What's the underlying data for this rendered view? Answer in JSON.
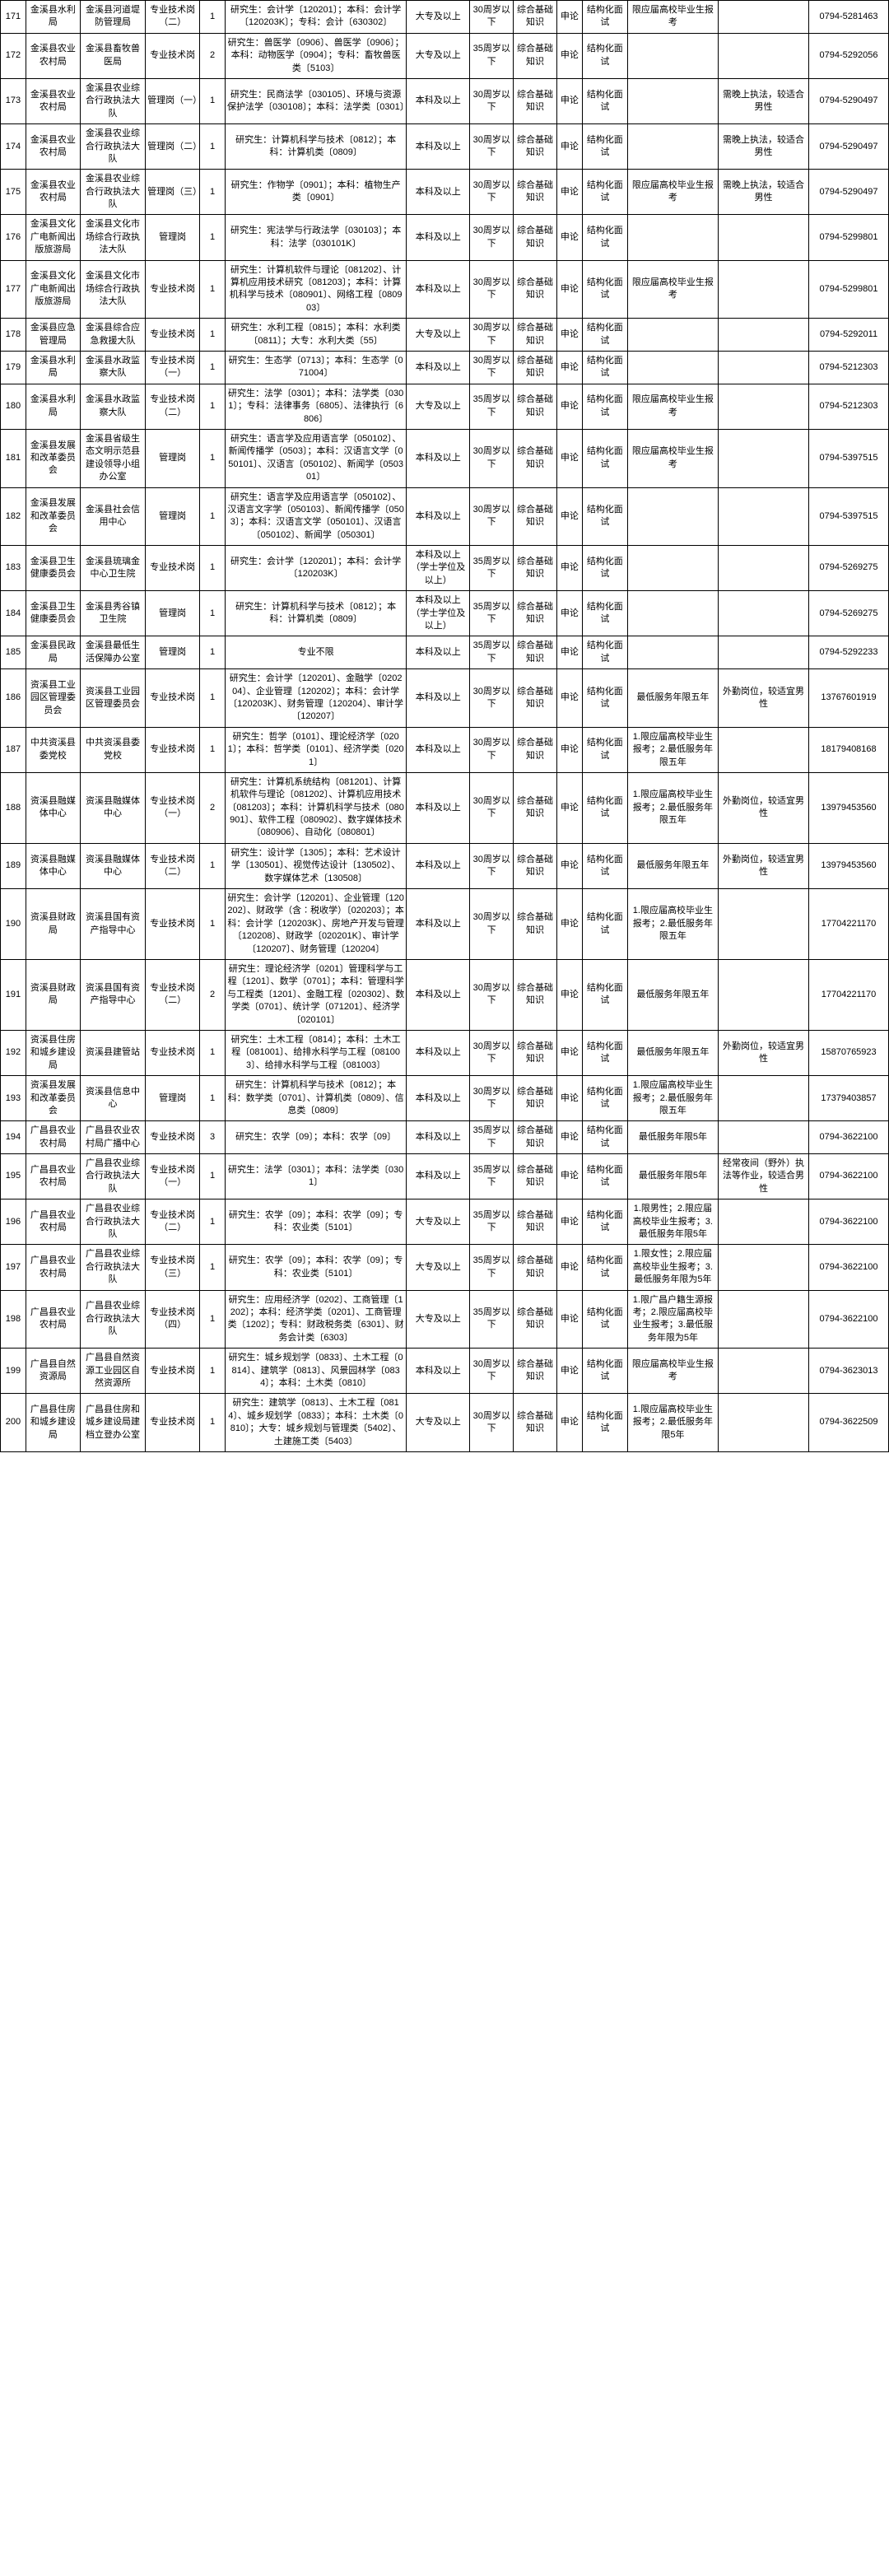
{
  "rows": [
    {
      "idx": "171",
      "dept": "金溪县水利局",
      "unit": "金溪县河道堤防管理局",
      "post": "专业技术岗（二）",
      "num": "1",
      "major": "研究生：会计学〔120201〕；本科：会计学〔120203K〕；专科：会计〔630302〕",
      "edu": "大专及以上",
      "age": "30周岁以下",
      "know": "综合基础知识",
      "sl": "申论",
      "iv": "结构化面试",
      "req": "限应届高校毕业生报考",
      "note": "",
      "tel": "0794-5281463"
    },
    {
      "idx": "172",
      "dept": "金溪县农业农村局",
      "unit": "金溪县畜牧兽医局",
      "post": "专业技术岗",
      "num": "2",
      "major": "研究生：兽医学〔0906〕、兽医学〔0906〕；本科：动物医学〔0904〕；专科：畜牧兽医类〔5103〕",
      "edu": "大专及以上",
      "age": "35周岁以下",
      "know": "综合基础知识",
      "sl": "申论",
      "iv": "结构化面试",
      "req": "",
      "note": "",
      "tel": "0794-5292056"
    },
    {
      "idx": "173",
      "dept": "金溪县农业农村局",
      "unit": "金溪县农业综合行政执法大队",
      "post": "管理岗（一）",
      "num": "1",
      "major": "研究生：民商法学〔030105〕、环境与资源保护法学〔030108〕；本科：法学类〔0301〕",
      "edu": "本科及以上",
      "age": "30周岁以下",
      "know": "综合基础知识",
      "sl": "申论",
      "iv": "结构化面试",
      "req": "",
      "note": "需晚上执法，较适合男性",
      "tel": "0794-5290497"
    },
    {
      "idx": "174",
      "dept": "金溪县农业农村局",
      "unit": "金溪县农业综合行政执法大队",
      "post": "管理岗（二）",
      "num": "1",
      "major": "研究生：计算机科学与技术〔0812〕；本科：计算机类〔0809〕",
      "edu": "本科及以上",
      "age": "30周岁以下",
      "know": "综合基础知识",
      "sl": "申论",
      "iv": "结构化面试",
      "req": "",
      "note": "需晚上执法，较适合男性",
      "tel": "0794-5290497"
    },
    {
      "idx": "175",
      "dept": "金溪县农业农村局",
      "unit": "金溪县农业综合行政执法大队",
      "post": "管理岗（三）",
      "num": "1",
      "major": "研究生：作物学〔0901〕；本科：植物生产类〔0901〕",
      "edu": "本科及以上",
      "age": "30周岁以下",
      "know": "综合基础知识",
      "sl": "申论",
      "iv": "结构化面试",
      "req": "限应届高校毕业生报考",
      "note": "需晚上执法，较适合男性",
      "tel": "0794-5290497"
    },
    {
      "idx": "176",
      "dept": "金溪县文化广电新闻出版旅游局",
      "unit": "金溪县文化市场综合行政执法大队",
      "post": "管理岗",
      "num": "1",
      "major": "研究生：宪法学与行政法学〔030103〕；本科：法学〔030101K〕",
      "edu": "本科及以上",
      "age": "30周岁以下",
      "know": "综合基础知识",
      "sl": "申论",
      "iv": "结构化面试",
      "req": "",
      "note": "",
      "tel": "0794-5299801"
    },
    {
      "idx": "177",
      "dept": "金溪县文化广电新闻出版旅游局",
      "unit": "金溪县文化市场综合行政执法大队",
      "post": "专业技术岗",
      "num": "1",
      "major": "研究生：计算机软件与理论〔081202〕、计算机应用技术研究〔081203〕；本科：计算机科学与技术〔080901〕、网络工程〔080903〕",
      "edu": "本科及以上",
      "age": "30周岁以下",
      "know": "综合基础知识",
      "sl": "申论",
      "iv": "结构化面试",
      "req": "限应届高校毕业生报考",
      "note": "",
      "tel": "0794-5299801"
    },
    {
      "idx": "178",
      "dept": "金溪县应急管理局",
      "unit": "金溪县综合应急救援大队",
      "post": "专业技术岗",
      "num": "1",
      "major": "研究生：水利工程〔0815〕；本科：水利类〔0811〕；大专：水利大类〔55〕",
      "edu": "大专及以上",
      "age": "30周岁以下",
      "know": "综合基础知识",
      "sl": "申论",
      "iv": "结构化面试",
      "req": "",
      "note": "",
      "tel": "0794-5292011"
    },
    {
      "idx": "179",
      "dept": "金溪县水利局",
      "unit": "金溪县水政监察大队",
      "post": "专业技术岗（一）",
      "num": "1",
      "major": "研究生：生态学〔0713〕；本科：生态学〔071004〕",
      "edu": "本科及以上",
      "age": "30周岁以下",
      "know": "综合基础知识",
      "sl": "申论",
      "iv": "结构化面试",
      "req": "",
      "note": "",
      "tel": "0794-5212303"
    },
    {
      "idx": "180",
      "dept": "金溪县水利局",
      "unit": "金溪县水政监察大队",
      "post": "专业技术岗（二）",
      "num": "1",
      "major": "研究生：法学〔0301〕；本科：法学类〔0301〕；专科：法律事务〔6805〕、法律执行〔6806〕",
      "edu": "大专及以上",
      "age": "35周岁以下",
      "know": "综合基础知识",
      "sl": "申论",
      "iv": "结构化面试",
      "req": "限应届高校毕业生报考",
      "note": "",
      "tel": "0794-5212303"
    },
    {
      "idx": "181",
      "dept": "金溪县发展和改革委员会",
      "unit": "金溪县省级生态文明示范县建设领导小组办公室",
      "post": "管理岗",
      "num": "1",
      "major": "研究生：语言学及应用语言学〔050102〕、新闻传播学〔0503〕；本科：汉语言文学〔050101〕、汉语言〔050102〕、新闻学〔050301〕",
      "edu": "本科及以上",
      "age": "30周岁以下",
      "know": "综合基础知识",
      "sl": "申论",
      "iv": "结构化面试",
      "req": "限应届高校毕业生报考",
      "note": "",
      "tel": "0794-5397515"
    },
    {
      "idx": "182",
      "dept": "金溪县发展和改革委员会",
      "unit": "金溪县社会信用中心",
      "post": "管理岗",
      "num": "1",
      "major": "研究生：语言学及应用语言学〔050102〕、汉语言文字学〔050103〕、新闻传播学〔0503〕；本科：汉语言文学〔050101〕、汉语言〔050102〕、新闻学〔050301〕",
      "edu": "本科及以上",
      "age": "30周岁以下",
      "know": "综合基础知识",
      "sl": "申论",
      "iv": "结构化面试",
      "req": "",
      "note": "",
      "tel": "0794-5397515"
    },
    {
      "idx": "183",
      "dept": "金溪县卫生健康委员会",
      "unit": "金溪县琉璃金中心卫生院",
      "post": "专业技术岗",
      "num": "1",
      "major": "研究生：会计学〔120201〕；本科：会计学〔120203K〕",
      "edu": "本科及以上（学士学位及以上）",
      "age": "35周岁以下",
      "know": "综合基础知识",
      "sl": "申论",
      "iv": "结构化面试",
      "req": "",
      "note": "",
      "tel": "0794-5269275"
    },
    {
      "idx": "184",
      "dept": "金溪县卫生健康委员会",
      "unit": "金溪县秀谷镇卫生院",
      "post": "管理岗",
      "num": "1",
      "major": "研究生：计算机科学与技术〔0812〕；本科：计算机类〔0809〕",
      "edu": "本科及以上（学士学位及以上）",
      "age": "35周岁以下",
      "know": "综合基础知识",
      "sl": "申论",
      "iv": "结构化面试",
      "req": "",
      "note": "",
      "tel": "0794-5269275"
    },
    {
      "idx": "185",
      "dept": "金溪县民政局",
      "unit": "金溪县最低生活保障办公室",
      "post": "管理岗",
      "num": "1",
      "major": "专业不限",
      "edu": "本科及以上",
      "age": "35周岁以下",
      "know": "综合基础知识",
      "sl": "申论",
      "iv": "结构化面试",
      "req": "",
      "note": "",
      "tel": "0794-5292233"
    },
    {
      "idx": "186",
      "dept": "资溪县工业园区管理委员会",
      "unit": "资溪县工业园区管理委员会",
      "post": "专业技术岗",
      "num": "1",
      "major": "研究生：会计学〔120201〕、金融学〔020204〕、企业管理〔120202〕；本科：会计学〔120203K〕、财务管理〔120204〕、审计学〔120207〕",
      "edu": "本科及以上",
      "age": "30周岁以下",
      "know": "综合基础知识",
      "sl": "申论",
      "iv": "结构化面试",
      "req": "最低服务年限五年",
      "note": "外勤岗位，较适宜男性",
      "tel": "13767601919"
    },
    {
      "idx": "187",
      "dept": "中共资溪县委党校",
      "unit": "中共资溪县委党校",
      "post": "专业技术岗",
      "num": "1",
      "major": "研究生：哲学〔0101〕、理论经济学〔0201〕；本科：哲学类〔0101〕、经济学类〔0201〕",
      "edu": "本科及以上",
      "age": "30周岁以下",
      "know": "综合基础知识",
      "sl": "申论",
      "iv": "结构化面试",
      "req": "1.限应届高校毕业生报考；2.最低服务年限五年",
      "note": "",
      "tel": "18179408168"
    },
    {
      "idx": "188",
      "dept": "资溪县融媒体中心",
      "unit": "资溪县融媒体中心",
      "post": "专业技术岗（一）",
      "num": "2",
      "major": "研究生：计算机系统结构〔081201〕、计算机软件与理论〔081202〕、计算机应用技术〔081203〕；本科：计算机科学与技术〔080901〕、软件工程〔080902〕、数字媒体技术〔080906〕、自动化〔080801〕",
      "edu": "本科及以上",
      "age": "30周岁以下",
      "know": "综合基础知识",
      "sl": "申论",
      "iv": "结构化面试",
      "req": "1.限应届高校毕业生报考；2.最低服务年限五年",
      "note": "外勤岗位，较适宜男性",
      "tel": "13979453560"
    },
    {
      "idx": "189",
      "dept": "资溪县融媒体中心",
      "unit": "资溪县融媒体中心",
      "post": "专业技术岗（二）",
      "num": "1",
      "major": "研究生：设计学〔1305〕；本科：艺术设计学〔130501〕、视觉传达设计〔130502〕、数字媒体艺术〔130508〕",
      "edu": "本科及以上",
      "age": "30周岁以下",
      "know": "综合基础知识",
      "sl": "申论",
      "iv": "结构化面试",
      "req": "最低服务年限五年",
      "note": "外勤岗位，较适宜男性",
      "tel": "13979453560"
    },
    {
      "idx": "190",
      "dept": "资溪县财政局",
      "unit": "资溪县国有资产指导中心",
      "post": "专业技术岗",
      "num": "1",
      "major": "研究生：会计学〔120201〕、企业管理〔120202〕、财政学（含∶税收学）〔020203〕；本科：会计学〔120203K〕、房地产开发与管理〔120208〕、财政学〔020201K〕、审计学〔120207〕、财务管理〔120204〕",
      "edu": "本科及以上",
      "age": "30周岁以下",
      "know": "综合基础知识",
      "sl": "申论",
      "iv": "结构化面试",
      "req": "1.限应届高校毕业生报考；2.最低服务年限五年",
      "note": "",
      "tel": "17704221170"
    },
    {
      "idx": "191",
      "dept": "资溪县财政局",
      "unit": "资溪县国有资产指导中心",
      "post": "专业技术岗（二）",
      "num": "2",
      "major": "研究生：理论经济学〔0201〕管理科学与工程〔1201〕、数学〔0701〕；本科：管理科学与工程类〔1201〕、金融工程〔020302〕、数学类〔0701〕、统计学〔071201〕、经济学〔020101〕",
      "edu": "本科及以上",
      "age": "30周岁以下",
      "know": "综合基础知识",
      "sl": "申论",
      "iv": "结构化面试",
      "req": "最低服务年限五年",
      "note": "",
      "tel": "17704221170"
    },
    {
      "idx": "192",
      "dept": "资溪县住房和城乡建设局",
      "unit": "资溪县建管站",
      "post": "专业技术岗",
      "num": "1",
      "major": "研究生：土木工程〔0814〕；本科：土木工程〔081001〕、给排水科学与工程〔081003〕、给排水科学与工程〔081003〕",
      "edu": "本科及以上",
      "age": "30周岁以下",
      "know": "综合基础知识",
      "sl": "申论",
      "iv": "结构化面试",
      "req": "最低服务年限五年",
      "note": "外勤岗位，较适宜男性",
      "tel": "15870765923"
    },
    {
      "idx": "193",
      "dept": "资溪县发展和改革委员会",
      "unit": "资溪县信息中心",
      "post": "管理岗",
      "num": "1",
      "major": "研究生：计算机科学与技术〔0812〕；本科：数学类〔0701〕、计算机类〔0809〕、信息类〔0809〕",
      "edu": "本科及以上",
      "age": "30周岁以下",
      "know": "综合基础知识",
      "sl": "申论",
      "iv": "结构化面试",
      "req": "1.限应届高校毕业生报考；2.最低服务年限五年",
      "note": "",
      "tel": "17379403857"
    },
    {
      "idx": "194",
      "dept": "广昌县农业农村局",
      "unit": "广昌县农业农村局广播中心",
      "post": "专业技术岗",
      "num": "3",
      "major": "研究生：农学〔09〕；本科：农学〔09〕",
      "edu": "本科及以上",
      "age": "35周岁以下",
      "know": "综合基础知识",
      "sl": "申论",
      "iv": "结构化面试",
      "req": "最低服务年限5年",
      "note": "",
      "tel": "0794-3622100"
    },
    {
      "idx": "195",
      "dept": "广昌县农业农村局",
      "unit": "广昌县农业综合行政执法大队",
      "post": "专业技术岗（一）",
      "num": "1",
      "major": "研究生：法学〔0301〕；本科：法学类〔0301〕",
      "edu": "本科及以上",
      "age": "35周岁以下",
      "know": "综合基础知识",
      "sl": "申论",
      "iv": "结构化面试",
      "req": "最低服务年限5年",
      "note": "经常夜间（野外）执法等作业，较适合男性",
      "tel": "0794-3622100"
    },
    {
      "idx": "196",
      "dept": "广昌县农业农村局",
      "unit": "广昌县农业综合行政执法大队",
      "post": "专业技术岗（二）",
      "num": "1",
      "major": "研究生：农学〔09〕；本科：农学〔09〕；专科：农业类〔5101〕",
      "edu": "大专及以上",
      "age": "35周岁以下",
      "know": "综合基础知识",
      "sl": "申论",
      "iv": "结构化面试",
      "req": "1.限男性；2.限应届高校毕业生报考；3.最低服务年限5年",
      "note": "",
      "tel": "0794-3622100"
    },
    {
      "idx": "197",
      "dept": "广昌县农业农村局",
      "unit": "广昌县农业综合行政执法大队",
      "post": "专业技术岗（三）",
      "num": "1",
      "major": "研究生：农学〔09〕；本科：农学〔09〕；专科：农业类〔5101〕",
      "edu": "大专及以上",
      "age": "35周岁以下",
      "know": "综合基础知识",
      "sl": "申论",
      "iv": "结构化面试",
      "req": "1.限女性；2.限应届高校毕业生报考；3.最低服务年限为5年",
      "note": "",
      "tel": "0794-3622100"
    },
    {
      "idx": "198",
      "dept": "广昌县农业农村局",
      "unit": "广昌县农业综合行政执法大队",
      "post": "专业技术岗（四）",
      "num": "1",
      "major": "研究生：应用经济学〔0202〕、工商管理〔1202〕；本科：经济学类〔0201〕、工商管理类〔1202〕；专科：财政税务类〔6301〕、财务会计类〔6303〕",
      "edu": "大专及以上",
      "age": "35周岁以下",
      "know": "综合基础知识",
      "sl": "申论",
      "iv": "结构化面试",
      "req": "1.限广昌户籍生源报考；2.限应届高校毕业生报考；3.最低服务年限为5年",
      "note": "",
      "tel": "0794-3622100"
    },
    {
      "idx": "199",
      "dept": "广昌县自然资源局",
      "unit": "广昌县自然资源工业园区自然资源所",
      "post": "专业技术岗",
      "num": "1",
      "major": "研究生：城乡规划学〔0833〕、土木工程〔0814〕、建筑学〔0813〕、风景园林学〔0834〕；本科：土木类〔0810〕",
      "edu": "本科及以上",
      "age": "30周岁以下",
      "know": "综合基础知识",
      "sl": "申论",
      "iv": "结构化面试",
      "req": "限应届高校毕业生报考",
      "note": "",
      "tel": "0794-3623013"
    },
    {
      "idx": "200",
      "dept": "广昌县住房和城乡建设局",
      "unit": "广昌县住房和城乡建设局建档立登办公室",
      "post": "专业技术岗",
      "num": "1",
      "major": "研究生：建筑学〔0813〕、土木工程〔0814〕、城乡规划学〔0833〕；本科：土木类〔0810〕；大专：城乡规划与管理类〔5402〕、土建施工类〔5403〕",
      "edu": "大专及以上",
      "age": "30周岁以下",
      "know": "综合基础知识",
      "sl": "申论",
      "iv": "结构化面试",
      "req": "1.限应届高校毕业生报考；2.最低服务年限5年",
      "note": "",
      "tel": "0794-3622509"
    }
  ]
}
